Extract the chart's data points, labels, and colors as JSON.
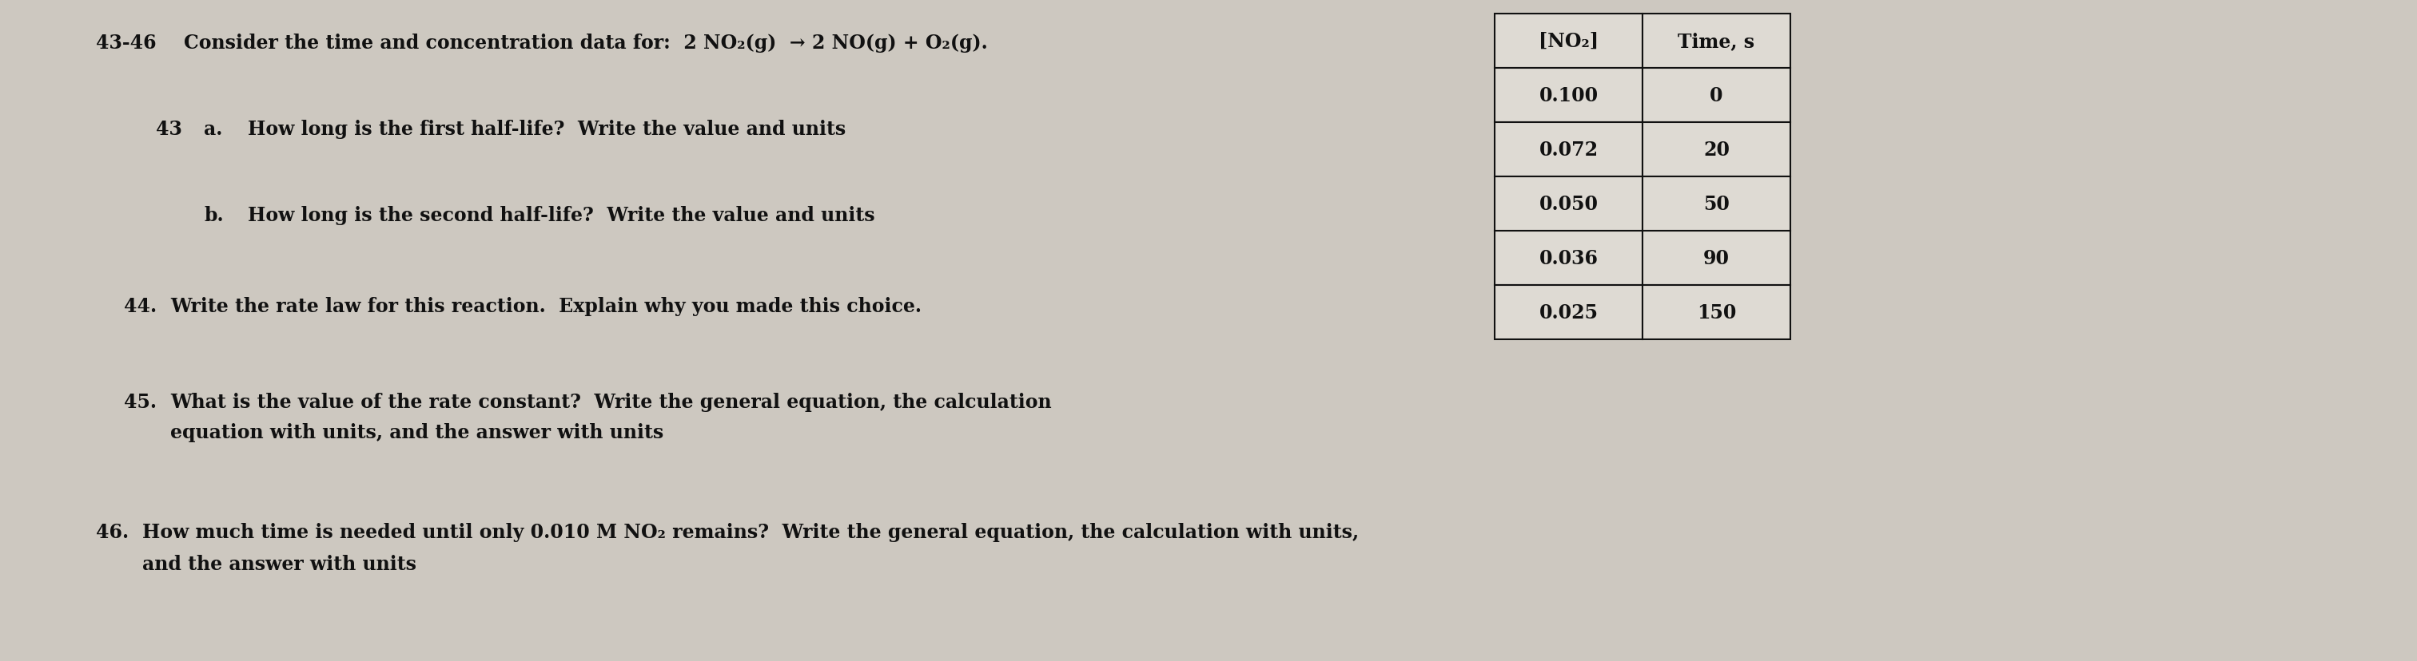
{
  "bg_color": "#cdc8c0",
  "title_num": "43-46",
  "title_text": "Consider the time and concentration data for:  2 NO₂(g)  → 2 NO(g) + O₂(g).",
  "q43_num": "43",
  "q43a_label": "a.",
  "q43a_text": "How long is the first half-life?  Write the value and units",
  "q43b_label": "b.",
  "q43b_text": "How long is the second half-life?  Write the value and units",
  "q44_num": "44.",
  "q44_text": "Write the rate law for this reaction.  Explain why you made this choice.",
  "q45_num": "45.",
  "q45_text": "What is the value of the rate constant?  Write the general equation, the calculation",
  "q45_text2": "equation with units, and the answer with units",
  "q46_num": "46.",
  "q46_text": "How much time is needed until only 0.010 M NO₂ remains?  Write the general equation, the calculation with units,",
  "q46_text2": "and the answer with units",
  "table_header_col1": "[NO₂]",
  "table_header_col2": "Time, s",
  "table_data": [
    [
      "0.100",
      "0"
    ],
    [
      "0.072",
      "20"
    ],
    [
      "0.050",
      "50"
    ],
    [
      "0.036",
      "90"
    ],
    [
      "0.025",
      "150"
    ]
  ],
  "text_color": "#111111",
  "table_bg": "#dedad3",
  "table_border": "#111111",
  "font_size_title": 17,
  "font_size_body": 17,
  "font_size_table": 17
}
